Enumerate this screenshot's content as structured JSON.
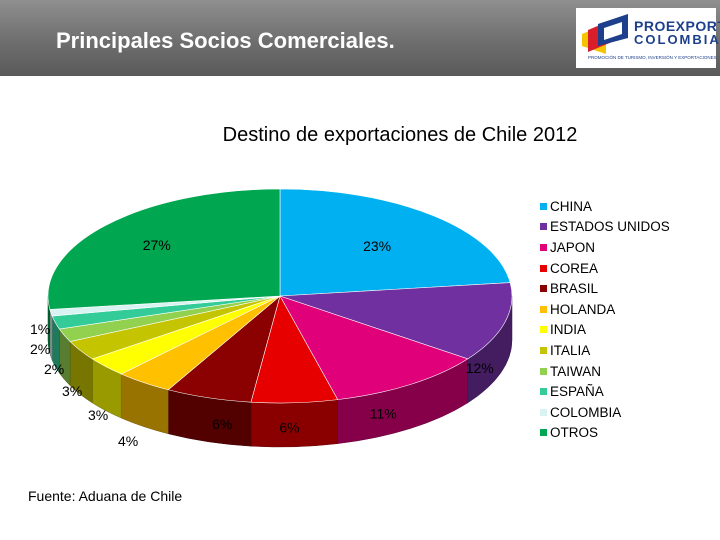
{
  "header": {
    "title": "Principales Socios Comerciales.",
    "logo_line1": "PROEXPORT",
    "logo_line2": "COLOMBIA",
    "logo_tagline": "PROMOCIÓN DE TURISMO, INVERSIÓN Y EXPORTACIONES"
  },
  "source": "Fuente: Aduana de Chile",
  "colors": {
    "header_bg": "#6e6e6e",
    "logo_blue": "#1d3f8c",
    "logo_red": "#d81e2b",
    "logo_yellow": "#f5c400"
  },
  "chart_data": {
    "type": "pie",
    "title": "Destino de exportaciones de Chile 2012",
    "style": "3d",
    "legend_position": "right",
    "categories": [
      "CHINA",
      "ESTADOS UNIDOS",
      "JAPON",
      "COREA",
      "BRASIL",
      "HOLANDA",
      "INDIA",
      "ITALIA",
      "TAIWAN",
      "ESPAÑA",
      "COLOMBIA",
      "OTROS"
    ],
    "values": [
      23,
      12,
      11,
      6,
      6,
      4,
      3,
      3,
      2,
      2,
      1,
      27
    ],
    "labels": [
      "23%",
      "12%",
      "11%",
      "6%",
      "6%",
      "4%",
      "3%",
      "3%",
      "2%",
      "2%",
      "1%",
      "27%"
    ],
    "colors": [
      "#00b0f0",
      "#7030a0",
      "#e0007a",
      "#e60000",
      "#8b0000",
      "#ffc000",
      "#ffff00",
      "#c4c400",
      "#92d050",
      "#33cc99",
      "#d9f2f2",
      "#00a650"
    ]
  }
}
